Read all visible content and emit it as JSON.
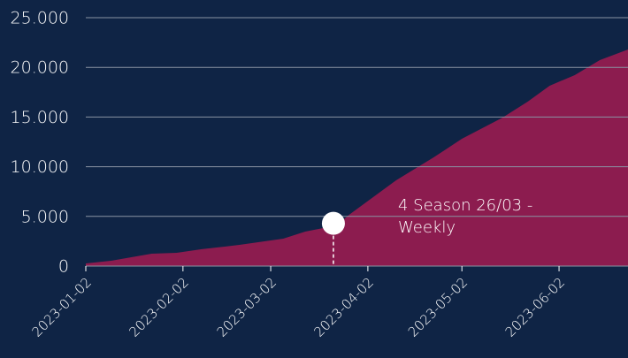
{
  "chart_data": {
    "type": "area",
    "color": "#8c1c4f",
    "x": [
      "2023-01-02",
      "2023-01-10",
      "2023-01-23",
      "2023-01-31",
      "2023-02-08",
      "2023-02-20",
      "2023-03-06",
      "2023-03-13",
      "2023-03-23",
      "2023-03-27",
      "2023-04-11",
      "2023-04-23",
      "2023-05-02",
      "2023-05-15",
      "2023-05-23",
      "2023-05-30",
      "2023-06-07",
      "2023-06-15",
      "2023-06-24"
    ],
    "values": [
      270,
      530,
      1250,
      1330,
      1700,
      2130,
      2760,
      3470,
      4090,
      5160,
      8630,
      10940,
      12810,
      14950,
      16550,
      18150,
      19220,
      20730,
      21800
    ],
    "xlim": [
      "2023-01-02",
      "2023-06-24"
    ],
    "xticks": [
      "2023-01-02",
      "2023-02-02",
      "2023-03-02",
      "2023-04-02",
      "2023-05-02",
      "2023-06-02"
    ],
    "ylim": [
      0,
      25000
    ],
    "yticks": [
      0,
      {
        "value": 5000,
        "label": "5.000"
      },
      {
        "value": 10000,
        "label": "10.000"
      },
      {
        "value": 15000,
        "label": "15.000"
      },
      {
        "value": 20000,
        "label": "20.000"
      },
      {
        "value": 25000,
        "label": "25.000"
      }
    ],
    "grid": true,
    "annotation": {
      "x": "2023-03-22",
      "y": 4300,
      "lines": [
        "4 Season 26/03 -",
        "Weekly"
      ]
    }
  }
}
